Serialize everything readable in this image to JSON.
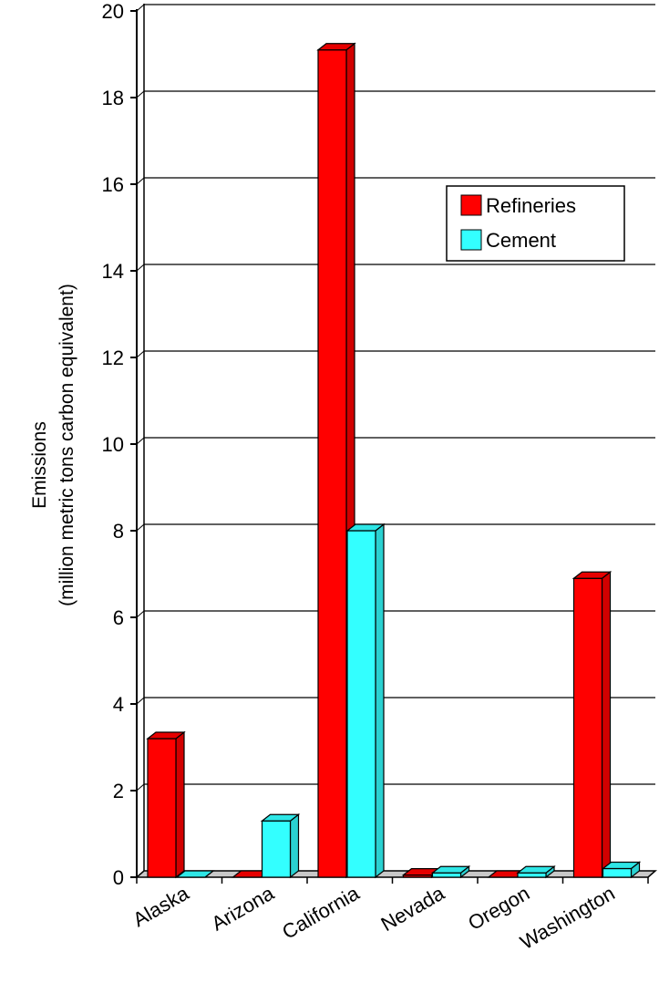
{
  "chart_data": {
    "type": "bar",
    "title": "",
    "xlabel": "",
    "ylabel_line1": "Emissions",
    "ylabel_line2": "(million metric tons carbon equivalent)",
    "categories": [
      "Alaska",
      "Arizona",
      "California",
      "Nevada",
      "Oregon",
      "Washington"
    ],
    "series": [
      {
        "name": "Refineries",
        "color": "#ff0000",
        "values": [
          3.2,
          0,
          19.1,
          0.05,
          0,
          6.9
        ]
      },
      {
        "name": "Cement",
        "color": "#33ffff",
        "values": [
          0,
          1.3,
          8.0,
          0.1,
          0.1,
          0.2
        ]
      }
    ],
    "ylim": [
      0,
      20
    ],
    "yticks": [
      "0",
      "2",
      "4",
      "6",
      "8",
      "10",
      "12",
      "14",
      "16",
      "18",
      "20"
    ],
    "grid": true,
    "legend_position": "top-right",
    "style": "3d-bar"
  }
}
